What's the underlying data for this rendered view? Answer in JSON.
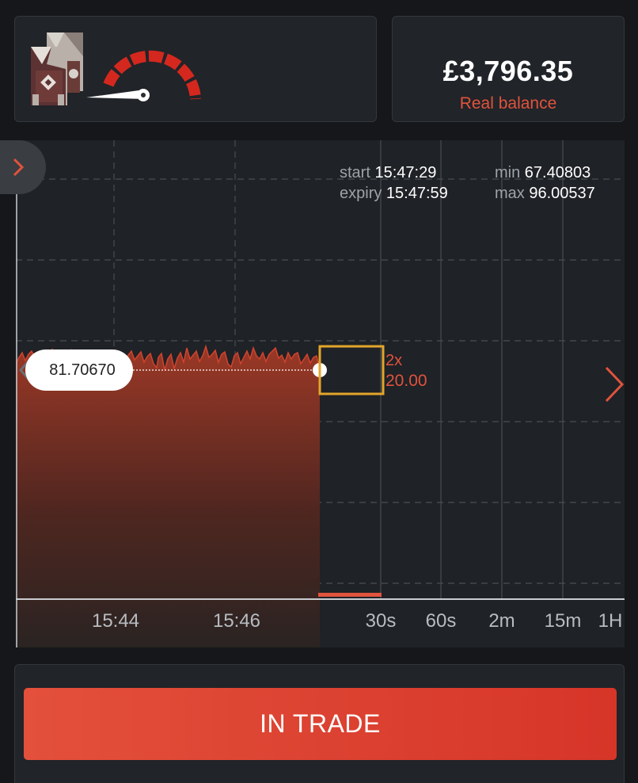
{
  "balance": {
    "amount": "£3,796.35",
    "label": "Real balance"
  },
  "trade_info": {
    "start_label": "start",
    "start_time": "15:47:29",
    "expiry_label": "expiry",
    "expiry_time": "15:47:59",
    "min_label": "min",
    "min_value": "67.40803",
    "max_label": "max",
    "max_value": "96.00537"
  },
  "chart": {
    "current_price": "81.70670",
    "payout_multiplier": "2x",
    "payout_value": "20.00",
    "time_ticks": [
      "15:44",
      "15:46"
    ],
    "expiry_options": [
      "30s",
      "60s",
      "2m",
      "15m",
      "1H"
    ]
  },
  "colors": {
    "accent": "#e0533d",
    "highlight_box": "#e3a52b",
    "background": "#15171a",
    "panel": "#212428"
  },
  "icons": {
    "drawer": "chevron-right-icon",
    "prev": "chevron-left-icon",
    "next": "chevron-right-icon",
    "logo": "tower-logo-icon",
    "gauge": "speedometer-icon"
  },
  "action_button": {
    "label": "IN TRADE"
  }
}
